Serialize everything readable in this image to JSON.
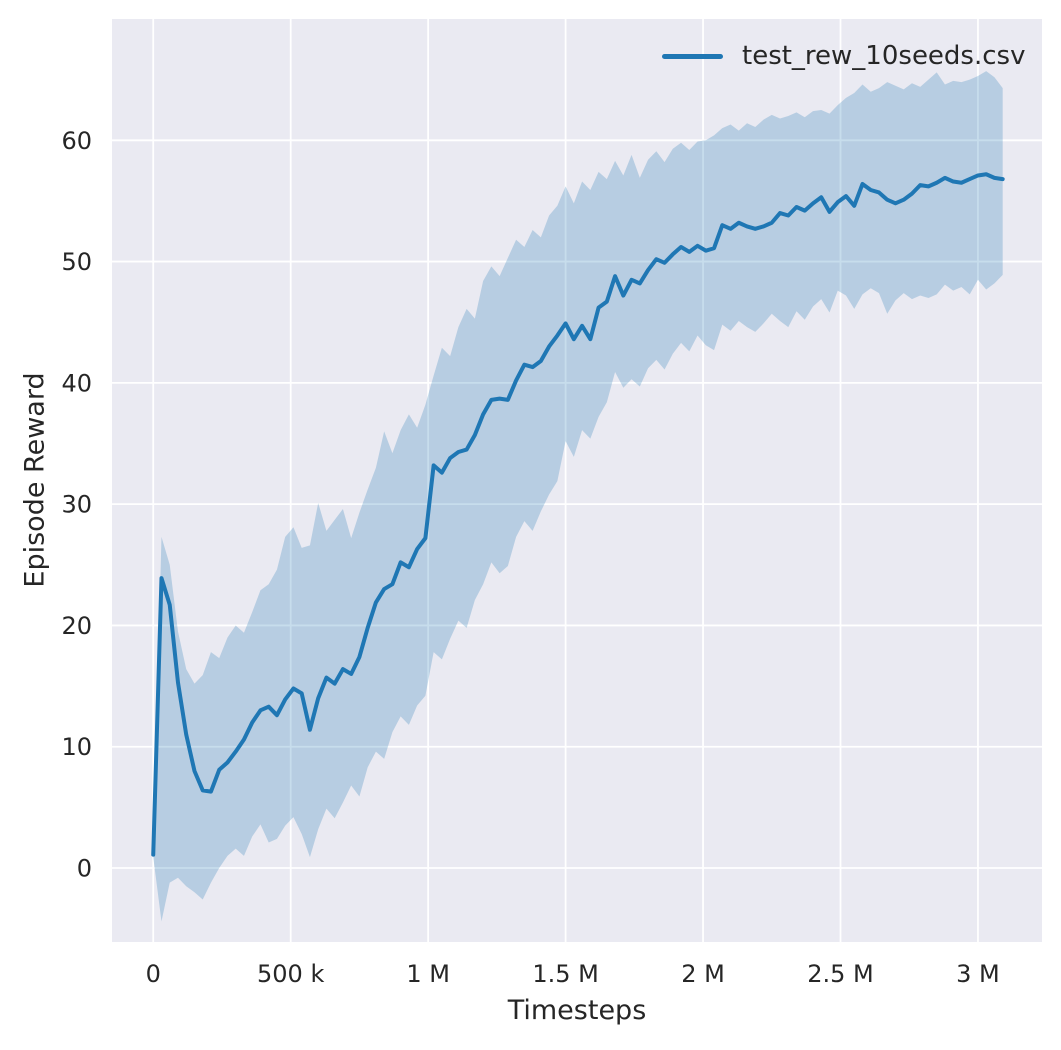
{
  "chart_data": {
    "type": "line",
    "title": "",
    "xlabel": "Timesteps",
    "ylabel": "Episode Reward",
    "grid": true,
    "legend_position": "upper right",
    "legend": [
      {
        "label": "test_rew_10seeds.csv",
        "color": "#1f77b4"
      }
    ],
    "xlim": [
      -150000,
      3233000
    ],
    "ylim": [
      -6.1,
      70
    ],
    "xticks": {
      "values": [
        0,
        500000,
        1000000,
        1500000,
        2000000,
        2500000,
        3000000
      ],
      "labels": [
        "0",
        "500 k",
        "1 M",
        "1.5 M",
        "2 M",
        "2.5 M",
        "3 M"
      ]
    },
    "yticks": {
      "values": [
        0,
        10,
        20,
        30,
        40,
        50,
        60
      ],
      "labels": [
        "0",
        "10",
        "20",
        "30",
        "40",
        "50",
        "60"
      ]
    },
    "colors": {
      "line": "#1f77b4",
      "band": "rgba(31,119,180,0.25)",
      "axes_background": "#eaeaf2",
      "grid": "#ffffff",
      "text": "#262626"
    },
    "series": [
      {
        "name": "test_rew_10seeds.csv",
        "x": [
          0,
          30000,
          60000,
          90000,
          120000,
          150000,
          180000,
          210000,
          240000,
          270000,
          300000,
          330000,
          360000,
          390000,
          420000,
          450000,
          480000,
          510000,
          540000,
          570000,
          600000,
          630000,
          660000,
          690000,
          720000,
          750000,
          780000,
          810000,
          840000,
          870000,
          900000,
          930000,
          960000,
          990000,
          1020000,
          1050000,
          1080000,
          1110000,
          1140000,
          1170000,
          1200000,
          1230000,
          1260000,
          1290000,
          1320000,
          1350000,
          1380000,
          1410000,
          1440000,
          1470000,
          1500000,
          1530000,
          1560000,
          1590000,
          1620000,
          1650000,
          1680000,
          1710000,
          1740000,
          1770000,
          1800000,
          1830000,
          1860000,
          1890000,
          1920000,
          1950000,
          1980000,
          2010000,
          2040000,
          2070000,
          2100000,
          2130000,
          2160000,
          2190000,
          2220000,
          2250000,
          2280000,
          2310000,
          2340000,
          2370000,
          2400000,
          2430000,
          2460000,
          2490000,
          2520000,
          2550000,
          2580000,
          2610000,
          2640000,
          2670000,
          2700000,
          2730000,
          2760000,
          2790000,
          2820000,
          2850000,
          2880000,
          2910000,
          2940000,
          2970000,
          3000000,
          3030000,
          3060000,
          3090000
        ],
        "mean": [
          1.1,
          23.9,
          21.7,
          15.3,
          11.0,
          8.0,
          6.4,
          6.3,
          8.1,
          8.7,
          9.6,
          10.6,
          12.0,
          13.0,
          13.3,
          12.6,
          13.9,
          14.8,
          14.4,
          11.4,
          14.0,
          15.7,
          15.2,
          16.4,
          16.0,
          17.4,
          19.8,
          21.9,
          23.0,
          23.4,
          25.2,
          24.8,
          26.3,
          27.2,
          33.2,
          32.6,
          33.8,
          34.3,
          34.5,
          35.7,
          37.4,
          38.6,
          38.7,
          38.6,
          40.2,
          41.5,
          41.3,
          41.8,
          43.0,
          43.9,
          44.9,
          43.6,
          44.7,
          43.6,
          46.2,
          46.7,
          48.8,
          47.2,
          48.5,
          48.2,
          49.3,
          50.2,
          49.9,
          50.6,
          51.2,
          50.8,
          51.3,
          50.9,
          51.1,
          53.0,
          52.7,
          53.2,
          52.9,
          52.7,
          52.9,
          53.2,
          54.0,
          53.8,
          54.5,
          54.2,
          54.8,
          55.3,
          54.1,
          54.9,
          55.4,
          54.6,
          56.4,
          55.9,
          55.7,
          55.1,
          54.8,
          55.1,
          55.6,
          56.3,
          56.2,
          56.5,
          56.9,
          56.6,
          56.5,
          56.8,
          57.1,
          57.2,
          56.9,
          56.8
        ],
        "band_low": [
          0.9,
          -4.4,
          -1.2,
          -0.8,
          -1.5,
          -2.0,
          -2.6,
          -1.2,
          0.0,
          1.0,
          1.6,
          1.0,
          2.6,
          3.6,
          2.1,
          2.4,
          3.5,
          4.2,
          2.8,
          0.9,
          3.2,
          4.9,
          4.1,
          5.4,
          6.8,
          5.9,
          8.3,
          9.6,
          9.0,
          11.2,
          12.5,
          11.8,
          13.4,
          14.2,
          17.8,
          17.2,
          18.9,
          20.4,
          19.8,
          22.1,
          23.4,
          25.2,
          24.3,
          24.9,
          27.3,
          28.6,
          27.8,
          29.4,
          30.8,
          31.9,
          35.2,
          33.9,
          36.1,
          35.4,
          37.2,
          38.4,
          40.9,
          39.6,
          40.3,
          39.7,
          41.2,
          41.9,
          41.1,
          42.4,
          43.3,
          42.6,
          43.9,
          43.1,
          42.7,
          44.8,
          44.3,
          45.1,
          44.6,
          44.2,
          44.9,
          45.7,
          45.1,
          44.6,
          45.9,
          45.2,
          46.3,
          46.9,
          45.8,
          47.6,
          47.2,
          46.1,
          47.3,
          47.8,
          47.4,
          45.7,
          46.8,
          47.4,
          46.9,
          47.2,
          47.0,
          47.3,
          48.1,
          47.6,
          47.9,
          47.3,
          48.5,
          47.7,
          48.2,
          48.9
        ],
        "band_high": [
          1.4,
          27.3,
          25.0,
          19.5,
          16.4,
          15.2,
          15.9,
          17.8,
          17.3,
          19.0,
          20.0,
          19.4,
          21.1,
          22.9,
          23.4,
          24.6,
          27.3,
          28.1,
          26.4,
          26.6,
          30.1,
          27.8,
          28.7,
          29.6,
          27.2,
          29.3,
          31.2,
          33.0,
          36.0,
          34.2,
          36.1,
          37.4,
          36.3,
          38.2,
          40.6,
          42.9,
          42.2,
          44.6,
          46.1,
          45.3,
          48.4,
          49.6,
          48.8,
          50.3,
          51.8,
          51.2,
          52.6,
          52.0,
          53.8,
          54.6,
          56.2,
          54.8,
          56.6,
          55.9,
          57.4,
          56.8,
          58.3,
          57.1,
          58.8,
          56.9,
          58.4,
          59.1,
          58.2,
          59.3,
          59.8,
          59.2,
          59.9,
          60.0,
          60.4,
          61.0,
          61.3,
          60.8,
          61.4,
          61.1,
          61.7,
          62.1,
          61.8,
          62.0,
          62.3,
          61.9,
          62.4,
          62.5,
          62.2,
          62.9,
          63.5,
          63.9,
          64.6,
          64.0,
          64.3,
          64.8,
          64.5,
          64.2,
          64.7,
          64.4,
          65.0,
          65.6,
          64.6,
          64.9,
          64.8,
          65.0,
          65.3,
          65.7,
          65.2,
          64.3
        ]
      }
    ]
  }
}
